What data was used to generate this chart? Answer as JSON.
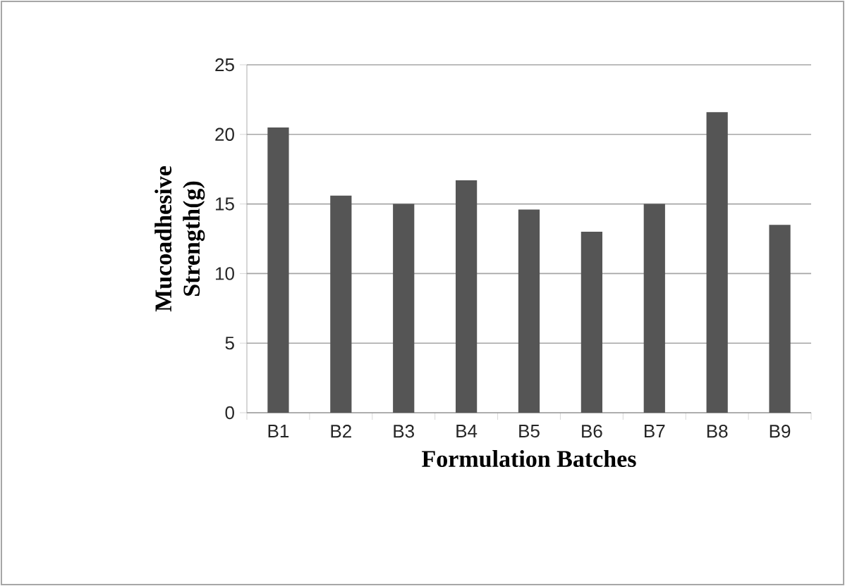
{
  "chart_data": {
    "type": "bar",
    "xlabel": "Formulation Batches",
    "ylabel": "Mucoadhesive Strength(g)",
    "categories": [
      "B1",
      "B2",
      "B3",
      "B4",
      "B5",
      "B6",
      "B7",
      "B8",
      "B9"
    ],
    "values": [
      20.5,
      15.6,
      15.0,
      16.7,
      14.6,
      13.0,
      15.0,
      21.6,
      13.5
    ],
    "color": "#555555",
    "ylim": [
      0,
      25
    ],
    "yticks": [
      0,
      5,
      10,
      15,
      20,
      25
    ],
    "grid": "y"
  }
}
